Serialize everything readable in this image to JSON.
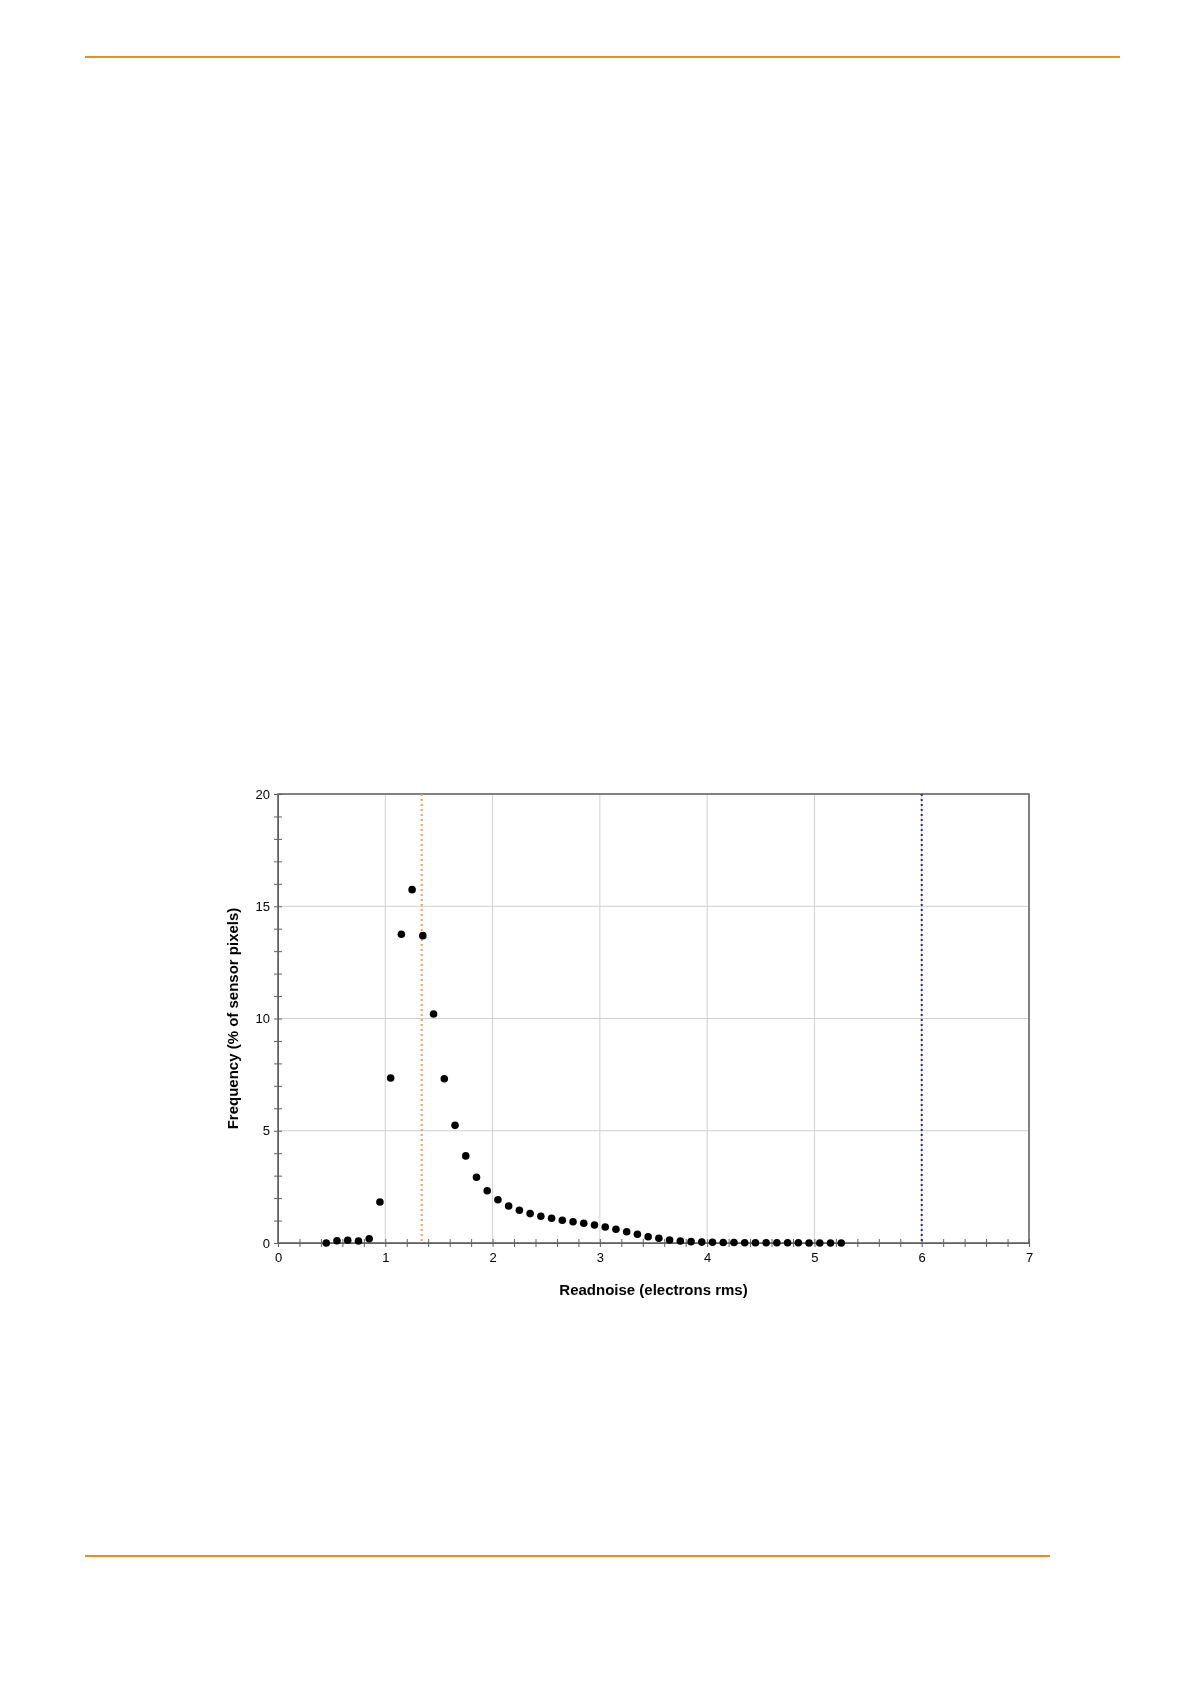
{
  "chart_data": {
    "type": "scatter",
    "xlabel": "Readnoise (electrons rms)",
    "ylabel": "Frequency (% of sensor pixels)",
    "x": [
      0.45,
      0.55,
      0.65,
      0.75,
      0.85,
      0.95,
      1.05,
      1.15,
      1.25,
      1.35,
      1.45,
      1.55,
      1.65,
      1.75,
      1.85,
      1.95,
      2.05,
      2.15,
      2.25,
      2.35,
      2.45,
      2.55,
      2.65,
      2.75,
      2.85,
      2.95,
      3.05,
      3.15,
      3.25,
      3.35,
      3.45,
      3.55,
      3.65,
      3.75,
      3.85,
      3.95,
      4.05,
      4.15,
      4.25,
      4.35,
      4.45,
      4.55,
      4.65,
      4.75,
      4.85,
      4.95,
      5.05,
      5.15,
      5.25
    ],
    "series": [
      {
        "color": "#000000",
        "values": [
          0,
          0.1,
          0.12,
          0.09,
          0.19,
          1.83,
          7.35,
          13.75,
          15.74,
          13.69,
          10.2,
          7.32,
          5.24,
          3.88,
          2.93,
          2.33,
          1.93,
          1.65,
          1.46,
          1.31,
          1.19,
          1.1,
          1.01,
          0.95,
          0.88,
          0.8,
          0.71,
          0.61,
          0.5,
          0.39,
          0.28,
          0.21,
          0.13,
          0.09,
          0.06,
          0.04,
          0.03,
          0.02,
          0.02,
          0.01,
          0.01,
          0.01,
          0.01,
          0.01,
          0.01,
          0,
          0,
          0,
          0
        ]
      }
    ],
    "marker": "circle",
    "xlim": [
      0,
      7
    ],
    "xticks": [
      0,
      {
        "value": 0.2,
        "label": null
      },
      {
        "value": 0.4,
        "label": null
      },
      {
        "value": 0.6,
        "label": null
      },
      {
        "value": 0.8,
        "label": null
      },
      1,
      {
        "value": 1.2,
        "label": null
      },
      {
        "value": 1.4,
        "label": null
      },
      {
        "value": 1.6,
        "label": null
      },
      {
        "value": 1.8,
        "label": null
      },
      2,
      {
        "value": 2.2,
        "label": null
      },
      {
        "value": 2.4,
        "label": null
      },
      {
        "value": 2.6,
        "label": null
      },
      {
        "value": 2.8,
        "label": null
      },
      3,
      {
        "value": 3.2,
        "label": null
      },
      {
        "value": 3.4,
        "label": null
      },
      {
        "value": 3.6,
        "label": null
      },
      {
        "value": 3.8,
        "label": null
      },
      4,
      {
        "value": 4.2,
        "label": null
      },
      {
        "value": 4.4,
        "label": null
      },
      {
        "value": 4.6,
        "label": null
      },
      {
        "value": 4.8,
        "label": null
      },
      5,
      {
        "value": 5.2,
        "label": null
      },
      {
        "value": 5.4,
        "label": null
      },
      {
        "value": 5.6,
        "label": null
      },
      {
        "value": 5.8,
        "label": null
      },
      6,
      {
        "value": 6.2,
        "label": null
      },
      {
        "value": 6.4,
        "label": null
      },
      {
        "value": 6.6,
        "label": null
      },
      {
        "value": 6.8,
        "label": null
      },
      7
    ],
    "ylim": [
      0,
      20
    ],
    "yticks": [
      0,
      {
        "value": 1,
        "label": null
      },
      {
        "value": 2,
        "label": null
      },
      {
        "value": 3,
        "label": null
      },
      {
        "value": 4,
        "label": null
      },
      5,
      {
        "value": 6,
        "label": null
      },
      {
        "value": 7,
        "label": null
      },
      {
        "value": 8,
        "label": null
      },
      {
        "value": 9,
        "label": null
      },
      10,
      {
        "value": 11,
        "label": null
      },
      {
        "value": 12,
        "label": null
      },
      {
        "value": 13,
        "label": null
      },
      {
        "value": 14,
        "label": null
      },
      15,
      {
        "value": 16,
        "label": null
      },
      {
        "value": 17,
        "label": null
      },
      {
        "value": 18,
        "label": null
      },
      {
        "value": 19,
        "label": null
      },
      20
    ],
    "grid": true,
    "ref_lines": [
      {
        "axis": "x",
        "value": 1.34,
        "color": "#f0a050",
        "line_style": "dotted"
      },
      {
        "axis": "x",
        "value": 6,
        "color": "#2a2a80",
        "line_style": "dotted"
      }
    ]
  }
}
